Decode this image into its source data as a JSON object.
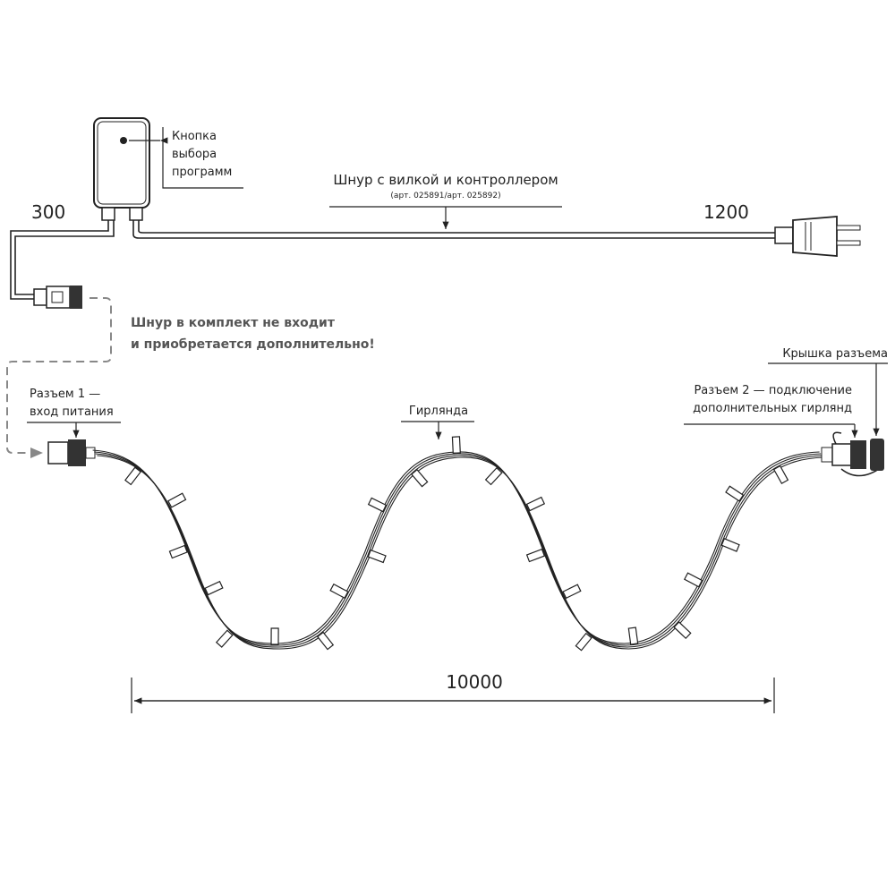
{
  "labels": {
    "button": [
      "Кнопка",
      "выбора",
      "программ"
    ],
    "cord_title": "Шнур с вилкой и контроллером",
    "cord_articles": "(арт. 025891/арт. 025892)",
    "dim_300": "300",
    "dim_1200": "1200",
    "dim_10000": "10000",
    "not_included": [
      "Шнур в комплект не входит",
      "и приобретается дополнительно!"
    ],
    "connector1": [
      "Разъем 1 —",
      "вход питания"
    ],
    "garland": "Гирлянда",
    "connector2": [
      "Разъем 2 — подключение",
      "дополнительных гирлянд"
    ],
    "cap": "Крышка разъема"
  },
  "colors": {
    "line": "#222222",
    "note": "#555555",
    "dashed": "#888888"
  }
}
